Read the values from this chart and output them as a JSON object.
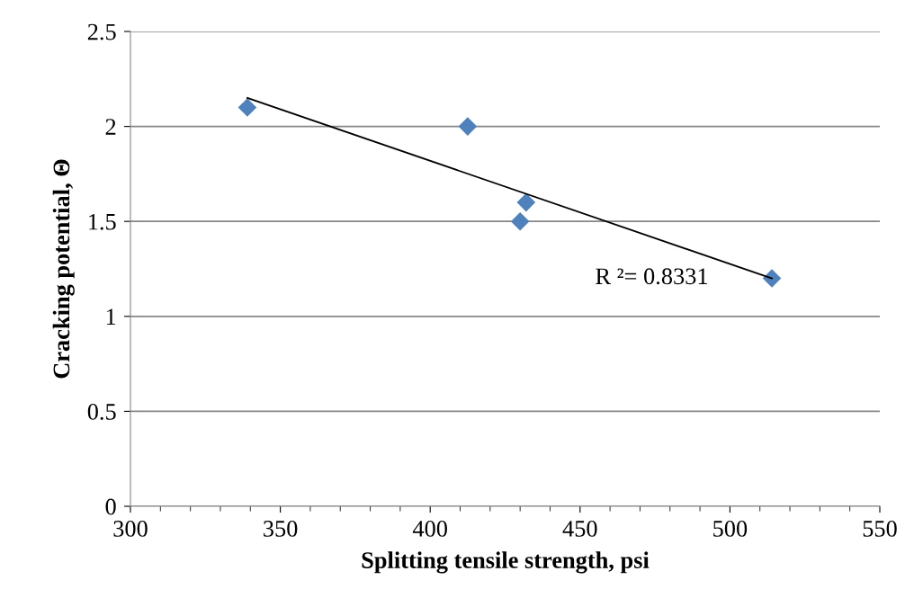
{
  "chart_data": {
    "type": "scatter",
    "xlabel": "Splitting tensile strength, psi",
    "ylabel": "Cracking potential, Θ",
    "grid": "y",
    "legend": false,
    "xlim": [
      300,
      550
    ],
    "xticks": [
      300,
      350,
      400,
      450,
      500,
      550
    ],
    "ylim": [
      0,
      2.5
    ],
    "yticks": [
      0,
      0.5,
      1,
      1.5,
      2,
      2.5
    ],
    "series": [
      {
        "marker": "diamond",
        "color": "#4f81bd",
        "x": [
          339,
          412.5,
          430,
          432,
          514
        ],
        "values": [
          2.1,
          2.0,
          1.5,
          1.6,
          1.2
        ]
      },
      {
        "type": "line",
        "color": "#000000",
        "x": [
          339,
          514
        ],
        "values": [
          2.15,
          1.2
        ]
      }
    ],
    "annotations": [
      "R ²= 0.8331"
    ]
  }
}
